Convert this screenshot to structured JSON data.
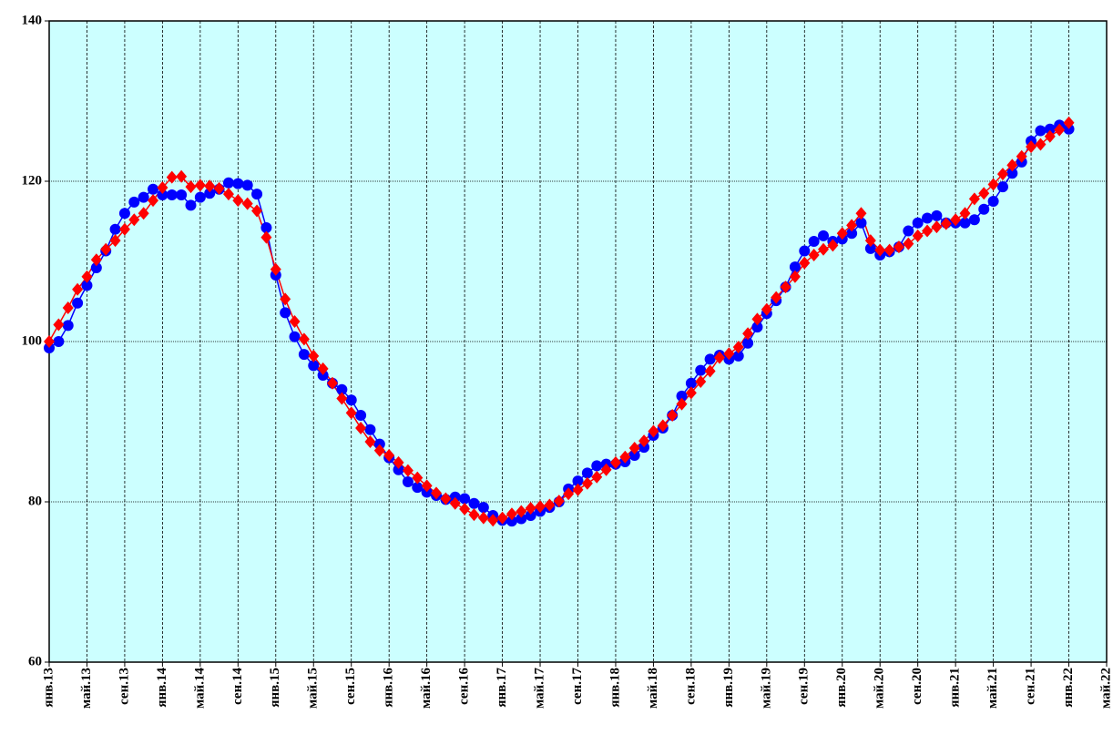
{
  "chart_data": {
    "type": "line",
    "categories": [
      "янв.13",
      null,
      null,
      null,
      "май.13",
      null,
      null,
      null,
      "сен.13",
      null,
      null,
      null,
      "янв.14",
      null,
      null,
      null,
      "май.14",
      null,
      null,
      null,
      "сен.14",
      null,
      null,
      null,
      "янв.15",
      null,
      null,
      null,
      "май.15",
      null,
      null,
      null,
      "сен.15",
      null,
      null,
      null,
      "янв.16",
      null,
      null,
      null,
      "май.16",
      null,
      null,
      null,
      "сен.16",
      null,
      null,
      null,
      "янв.17",
      null,
      null,
      null,
      "май.17",
      null,
      null,
      null,
      "сен.17",
      null,
      null,
      null,
      "янв.18",
      null,
      null,
      null,
      "май.18",
      null,
      null,
      null,
      "сен.18",
      null,
      null,
      null,
      "янв.19",
      null,
      null,
      null,
      "май.19",
      null,
      null,
      null,
      "сен.19",
      null,
      null,
      null,
      "янв.20",
      null,
      null,
      null,
      "май.20",
      null,
      null,
      null,
      "сен.20",
      null,
      null,
      null,
      "янв.21",
      null,
      null,
      null,
      "май.21",
      null,
      null,
      null,
      "сен.21",
      null,
      null,
      null,
      "янв.22",
      null,
      null,
      null,
      "май.22"
    ],
    "series": [
      {
        "color": "#0000ff",
        "marker": "circle",
        "values": [
          99.2,
          100,
          102,
          104.8,
          107,
          109.2,
          111.3,
          114,
          116,
          117.4,
          118,
          119,
          118.3,
          118.3,
          118.3,
          117,
          118,
          118.5,
          119,
          119.8,
          119.7,
          119.5,
          118.4,
          114.2,
          108.3,
          103.6,
          100.6,
          98.4,
          97,
          95.8,
          94.8,
          94,
          92.7,
          90.8,
          89,
          87.2,
          85.5,
          84,
          82.5,
          81.8,
          81.2,
          80.8,
          80.3,
          80.6,
          80.4,
          79.8,
          79.3,
          78.3,
          77.7,
          77.6,
          77.9,
          78.3,
          78.8,
          79.3,
          80,
          81.6,
          82.6,
          83.6,
          84.5,
          84.7,
          84.7,
          85,
          85.8,
          86.8,
          88.3,
          89.2,
          90.8,
          93.2,
          94.8,
          96.4,
          97.8,
          98.3,
          97.8,
          98.2,
          99.8,
          101.8,
          103.5,
          105.1,
          106.8,
          109.3,
          111.3,
          112.5,
          113.2,
          112.5,
          112.8,
          113.5,
          114.8,
          111.6,
          110.8,
          111.2,
          111.8,
          113.8,
          114.8,
          115.4,
          115.7,
          114.8,
          114.8,
          114.8,
          115.2,
          116.5,
          117.5,
          119.3,
          121,
          122.4,
          125,
          126.3,
          126.5,
          127,
          126.5,
          null,
          null,
          null,
          null
        ]
      },
      {
        "color": "#ff0000",
        "marker": "diamond",
        "values": [
          100,
          102.1,
          104.2,
          106.5,
          108.1,
          110.2,
          111.5,
          112.6,
          114,
          115.2,
          116,
          117.6,
          119.2,
          120.5,
          120.6,
          119.3,
          119.5,
          119.4,
          119.1,
          118.4,
          117.6,
          117.2,
          116.3,
          113,
          109,
          105.3,
          102.5,
          100.3,
          98.2,
          96.6,
          94.8,
          92.9,
          91.1,
          89.2,
          87.5,
          86.4,
          85.8,
          84.9,
          83.9,
          83,
          82,
          81.1,
          80.4,
          79.8,
          79.1,
          78.4,
          78,
          77.7,
          78,
          78.5,
          78.8,
          79.2,
          79.4,
          79.6,
          80.1,
          81,
          81.5,
          82.3,
          83.1,
          84,
          84.9,
          85.6,
          86.7,
          87.6,
          88.8,
          89.5,
          90.8,
          92.2,
          93.6,
          95,
          96.3,
          98,
          98.5,
          99.3,
          101,
          102.8,
          104,
          105.5,
          106.8,
          108.1,
          109.8,
          110.8,
          111.5,
          112,
          113.5,
          114.5,
          116,
          112.6,
          111.4,
          111.4,
          111.8,
          112.2,
          113.2,
          113.8,
          114.3,
          114.7,
          115.2,
          116,
          117.8,
          118.5,
          119.6,
          120.9,
          122,
          123.1,
          124.3,
          124.6,
          125.6,
          126.4,
          127.3,
          null,
          null,
          null,
          null
        ]
      }
    ],
    "ylim": [
      60,
      140
    ],
    "yticks": [
      60,
      80,
      100,
      120,
      140
    ],
    "grid": true,
    "background": "#ccffff"
  }
}
